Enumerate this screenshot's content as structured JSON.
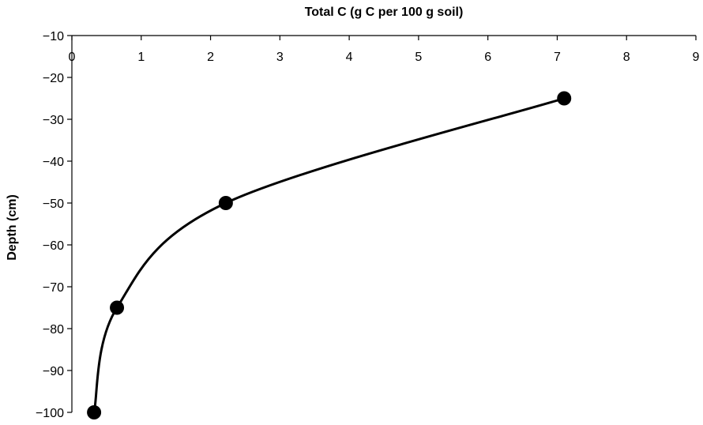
{
  "chart_data": {
    "type": "line",
    "xlabel": "Total C (g C per 100 g soil)",
    "ylabel": "Depth (cm)",
    "xlim": [
      0,
      9
    ],
    "ylim": [
      -100,
      -10
    ],
    "x_ticks": [
      0,
      1,
      2,
      3,
      4,
      5,
      6,
      7,
      8,
      9
    ],
    "y_ticks": [
      -10,
      -20,
      -30,
      -40,
      -50,
      -60,
      -70,
      -80,
      -90,
      -100
    ],
    "x_tick_labels": [
      "0",
      "1",
      "2",
      "3",
      "4",
      "5",
      "6",
      "7",
      "8",
      "9"
    ],
    "y_tick_labels": [
      "−10",
      "−20",
      "−30",
      "−40",
      "−50",
      "−60",
      "−70",
      "−80",
      "−90",
      "−100"
    ],
    "x_axis_position": "top",
    "grid": false,
    "series": [
      {
        "marker": "circle",
        "smooth": true,
        "points": [
          {
            "x": 7.1,
            "y": -25
          },
          {
            "x": 2.22,
            "y": -50
          },
          {
            "x": 0.65,
            "y": -75
          },
          {
            "x": 0.32,
            "y": -100
          }
        ]
      }
    ],
    "colors": {
      "line": "#000000",
      "marker": "#000000"
    }
  }
}
